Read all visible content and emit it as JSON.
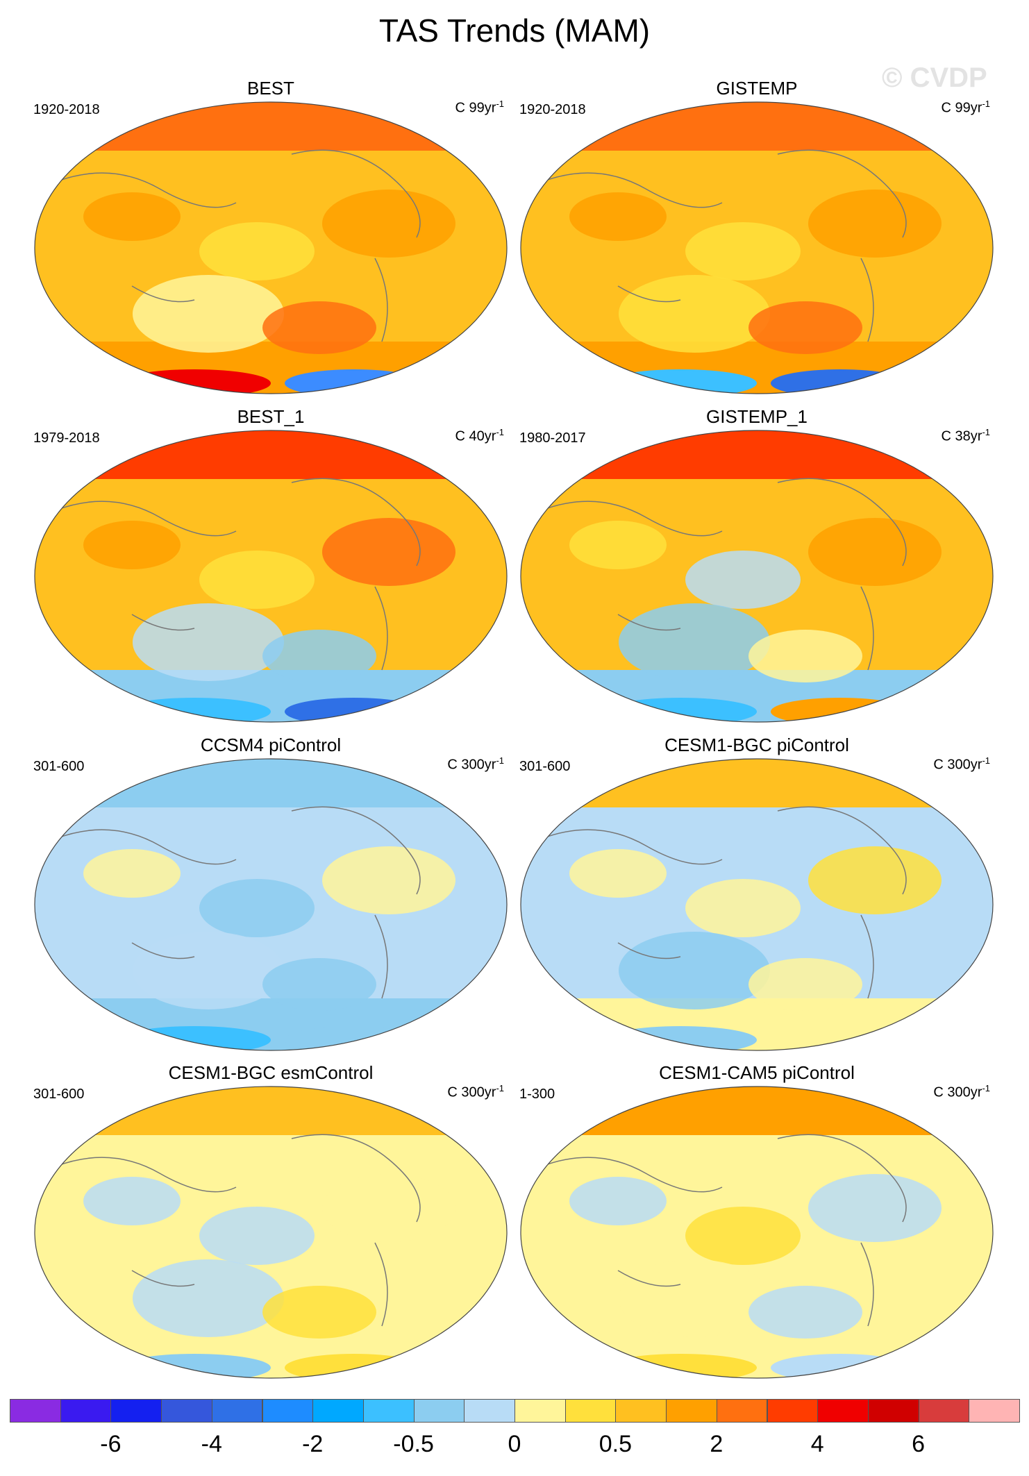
{
  "title": "TAS Trends (MAM)",
  "watermark": "© CVDP",
  "panels": [
    {
      "title": "BEST",
      "period": "1920-2018",
      "units_prefix": "C ",
      "units_num": "99yr",
      "units_exp": "-1",
      "style": "warm"
    },
    {
      "title": "GISTEMP",
      "period": "1920-2018",
      "units_prefix": "C ",
      "units_num": "99yr",
      "units_exp": "-1",
      "style": "warm-gis"
    },
    {
      "title": "BEST_1",
      "period": "1979-2018",
      "units_prefix": "C ",
      "units_num": "40yr",
      "units_exp": "-1",
      "style": "hot"
    },
    {
      "title": "GISTEMP_1",
      "period": "1980-2017",
      "units_prefix": "C ",
      "units_num": "38yr",
      "units_exp": "-1",
      "style": "hot-gis"
    },
    {
      "title": "CCSM4 piControl",
      "period": "301-600",
      "units_prefix": "C ",
      "units_num": "300yr",
      "units_exp": "-1",
      "style": "cool"
    },
    {
      "title": "CESM1-BGC piControl",
      "period": "301-600",
      "units_prefix": "C ",
      "units_num": "300yr",
      "units_exp": "-1",
      "style": "mixed"
    },
    {
      "title": "CESM1-BGC esmControl",
      "period": "301-600",
      "units_prefix": "C ",
      "units_num": "300yr",
      "units_exp": "-1",
      "style": "mixed-y"
    },
    {
      "title": "CESM1-CAM5 piControl",
      "period": "1-300",
      "units_prefix": "C ",
      "units_num": "300yr",
      "units_exp": "-1",
      "style": "mixed-o"
    }
  ],
  "colorbar": {
    "colors": [
      "#8a2be2",
      "#3a1af0",
      "#1420f0",
      "#3557dc",
      "#2f70e6",
      "#1e8cff",
      "#00a8ff",
      "#3cc0ff",
      "#8ccdf0",
      "#b8dcf6",
      "#fff59a",
      "#ffe03c",
      "#ffc020",
      "#ffa000",
      "#ff7010",
      "#ff3c00",
      "#f00000",
      "#d00000",
      "#d83c3c",
      "#ffb4b4"
    ],
    "labels": [
      "-6",
      "-4",
      "-2",
      "-0.5",
      "0",
      "0.5",
      "2",
      "4",
      "6"
    ]
  }
}
